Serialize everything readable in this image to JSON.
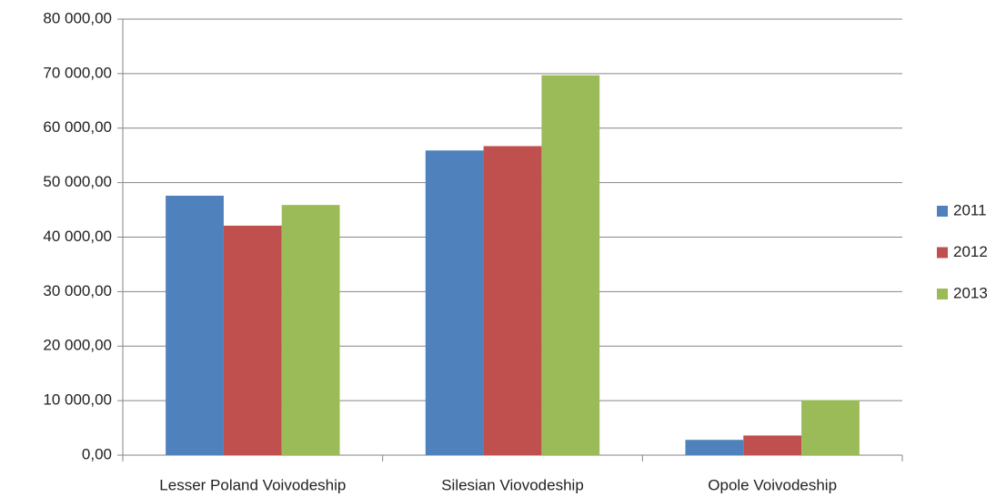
{
  "chart_data": {
    "type": "bar",
    "categories": [
      "Lesser Poland Voivodeship",
      "Silesian Viovodeship",
      "Opole Voivodeship"
    ],
    "series": [
      {
        "name": "2011",
        "color": "#4f81bd",
        "values": [
          47600,
          55900,
          2800
        ]
      },
      {
        "name": "2012",
        "color": "#c0504d",
        "values": [
          42100,
          56700,
          3600
        ]
      },
      {
        "name": "2013",
        "color": "#9bbb59",
        "values": [
          45900,
          69700,
          10100
        ]
      }
    ],
    "ylim": [
      0,
      80000
    ],
    "yticks": [
      {
        "value": 0,
        "label": "0,00"
      },
      {
        "value": 10000,
        "label": "10 000,00"
      },
      {
        "value": 20000,
        "label": "20 000,00"
      },
      {
        "value": 30000,
        "label": "30 000,00"
      },
      {
        "value": 40000,
        "label": "40 000,00"
      },
      {
        "value": 50000,
        "label": "50 000,00"
      },
      {
        "value": 60000,
        "label": "60 000,00"
      },
      {
        "value": 70000,
        "label": "70 000,00"
      },
      {
        "value": 80000,
        "label": "80 000,00"
      }
    ],
    "grid": true,
    "legend": "right"
  }
}
